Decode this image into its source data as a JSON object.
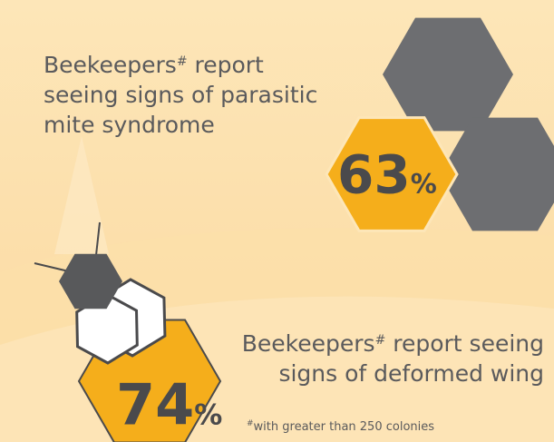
{
  "stats": [
    {
      "lines": [
        [
          "Beekeepers",
          "#",
          " report"
        ],
        [
          "seeing signs of parasitic"
        ],
        [
          "mite syndrome"
        ]
      ],
      "value": "63",
      "unit": "%"
    },
    {
      "lines": [
        [
          "Beekeepers",
          "#",
          " report seeing"
        ],
        [
          "signs of deformed wing"
        ]
      ],
      "value": "74",
      "unit": "%"
    }
  ],
  "footnote": {
    "mark": "#",
    "text": "with greater than 250 colonies"
  }
}
